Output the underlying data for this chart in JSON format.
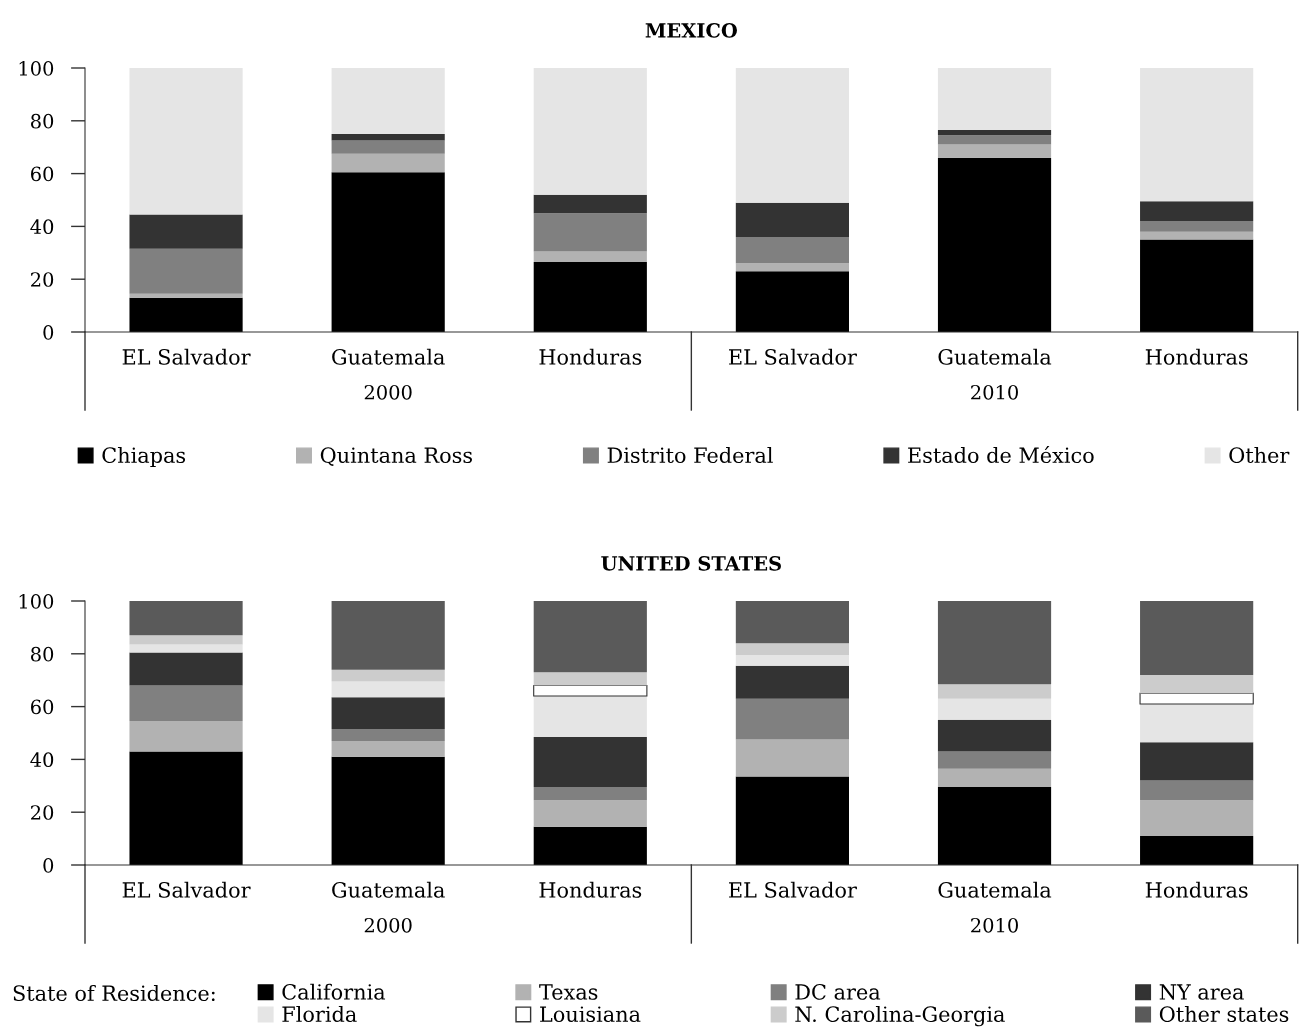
{
  "chart_data": [
    {
      "type": "bar",
      "stacked": true,
      "title": "MEXICO",
      "categories": [
        "EL Salvador",
        "Guatemala",
        "Honduras",
        "EL Salvador",
        "Guatemala",
        "Honduras"
      ],
      "annotations": [
        "2000",
        "2010"
      ],
      "ylim": [
        0,
        100
      ],
      "yticks": [
        0,
        20,
        40,
        60,
        80,
        100
      ],
      "legend": "bottom",
      "series": [
        {
          "name": "Chiapas",
          "color": "#000000",
          "values": [
            13,
            60.5,
            26.5,
            23,
            66,
            35
          ]
        },
        {
          "name": "Quintana Ross",
          "color": "#b2b2b2",
          "values": [
            1.5,
            7,
            4,
            3,
            5,
            3
          ]
        },
        {
          "name": "Distrito Federal",
          "color": "#808080",
          "values": [
            17,
            5,
            14.5,
            10,
            3.5,
            4
          ]
        },
        {
          "name": "Estado de México",
          "color": "#333333",
          "values": [
            13,
            2.5,
            7,
            13,
            2,
            7.5
          ]
        },
        {
          "name": "Other",
          "color": "#e5e5e5",
          "values": [
            55.5,
            25,
            48,
            51,
            23.5,
            50.5
          ]
        }
      ]
    },
    {
      "type": "bar",
      "stacked": true,
      "title": "UNITED STATES",
      "categories": [
        "EL Salvador",
        "Guatemala",
        "Honduras",
        "EL Salvador",
        "Guatemala",
        "Honduras"
      ],
      "annotations": [
        "2000",
        "2010"
      ],
      "ylim": [
        0,
        100
      ],
      "yticks": [
        0,
        20,
        40,
        60,
        80,
        100
      ],
      "legend": "bottom",
      "legend_title": "State of Residence:",
      "series": [
        {
          "name": "California",
          "color": "#000000",
          "values": [
            43,
            41,
            14.5,
            33.5,
            29.5,
            11
          ]
        },
        {
          "name": "Texas",
          "color": "#b2b2b2",
          "values": [
            11.5,
            6,
            10,
            14,
            7,
            13.5
          ]
        },
        {
          "name": "DC area",
          "color": "#808080",
          "values": [
            13.5,
            4.5,
            5,
            15.5,
            6.5,
            7.5
          ]
        },
        {
          "name": "NY area",
          "color": "#333333",
          "values": [
            12.5,
            12,
            19,
            12.5,
            12,
            14.5
          ]
        },
        {
          "name": "Florida",
          "color": "#e5e5e5",
          "values": [
            3,
            6,
            15.5,
            4,
            8,
            14.5
          ]
        },
        {
          "name": "Louisiana",
          "color": "#ffffff",
          "values": [
            0,
            0,
            4,
            0,
            0,
            4
          ]
        },
        {
          "name": "N. Carolina-Georgia",
          "color": "#cccccc",
          "values": [
            3.5,
            4.5,
            5,
            4.5,
            5.5,
            7
          ]
        },
        {
          "name": "Other states",
          "color": "#5a5a5a",
          "values": [
            13,
            26,
            27,
            16,
            31.5,
            28
          ]
        }
      ]
    }
  ]
}
